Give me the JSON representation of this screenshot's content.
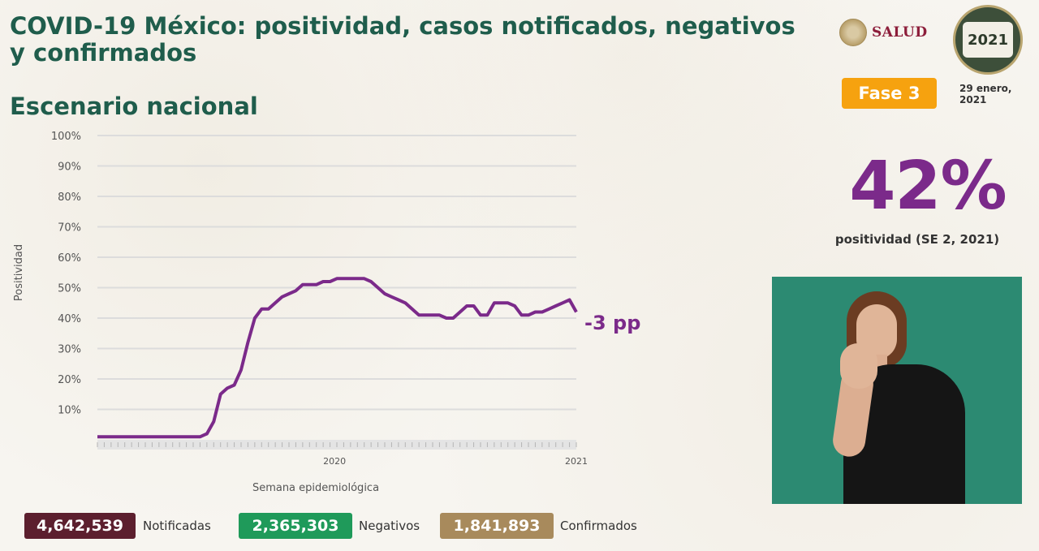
{
  "header": {
    "title": "COVID-19 México: positividad, casos notificados, negativos y confirmados",
    "subtitle": "Escenario nacional",
    "salud_logo_text": "SALUD",
    "logo_year": "2021",
    "phase_badge": "Fase 3",
    "date_line1": "29 enero,",
    "date_line2": "2021",
    "phase_color": "#f6a20f"
  },
  "highlight": {
    "value": "42%",
    "label": "positividad (SE 2, 2021)",
    "color": "#7b2a8a"
  },
  "chart_data": {
    "type": "line",
    "ylabel": "Positividad",
    "xlabel": "Semana epidemiológica",
    "y_ticks": [
      "100%",
      "90%",
      "80%",
      "70%",
      "60%",
      "50%",
      "40%",
      "30%",
      "20%",
      "10%"
    ],
    "ylim": [
      0,
      100
    ],
    "x_year_labels": [
      {
        "label": "2020",
        "week_index": 51
      },
      {
        "label": "2021",
        "week_index": 103
      }
    ],
    "annotation": "-3 pp",
    "line_color": "#7b2a8a",
    "grid": true,
    "series": [
      {
        "values": [
          1,
          1,
          1,
          1,
          1,
          1,
          1,
          1,
          1,
          1,
          1,
          1,
          1,
          1,
          1,
          1,
          2,
          6,
          15,
          17,
          18,
          23,
          32,
          40,
          43,
          43,
          45,
          47,
          48,
          49,
          51,
          51,
          51,
          52,
          52,
          53,
          53,
          53,
          53,
          53,
          52,
          50,
          48,
          47,
          46,
          45,
          43,
          41,
          41,
          41,
          41,
          40,
          40,
          42,
          44,
          44,
          41,
          41,
          45,
          45,
          45,
          44,
          41,
          41,
          42,
          42,
          43,
          44,
          45,
          46,
          42
        ]
      }
    ]
  },
  "footer": {
    "notificadas_value": "4,642,539",
    "notificadas_label": "Notificadas",
    "notificadas_color": "#5c1f2e",
    "negativos_value": "2,365,303",
    "negativos_label": "Negativos",
    "negativos_color": "#1f9a5a",
    "confirmados_value": "1,841,893",
    "confirmados_label": "Confirmados",
    "confirmados_color": "#a88a5c"
  }
}
